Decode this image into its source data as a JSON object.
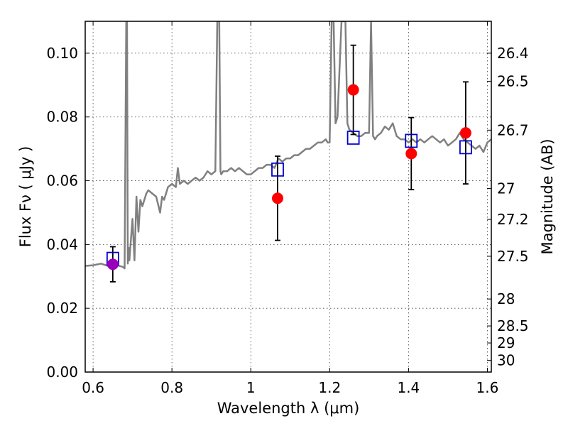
{
  "chart_data": {
    "type": "line",
    "title": "",
    "xlabel": "Wavelength  λ (μm)",
    "ylabel": "Flux  Fν  ( μJy )",
    "ylabel_right": "Magnitude (AB)",
    "xlim": [
      0.58,
      1.61
    ],
    "ylim": [
      0.0,
      0.11
    ],
    "grid": true,
    "colors": {
      "spectrum": "#808080",
      "observed": "#ff0000",
      "first_point": "#9900bb",
      "model": "#0000cc",
      "errorbar": "#000000"
    },
    "x_ticks": [
      {
        "value": 0.6,
        "label": "0.6"
      },
      {
        "value": 0.8,
        "label": "0.8"
      },
      {
        "value": 1.0,
        "label": "1"
      },
      {
        "value": 1.2,
        "label": "1.2"
      },
      {
        "value": 1.4,
        "label": "1.4"
      },
      {
        "value": 1.6,
        "label": "1.6"
      }
    ],
    "y_ticks": [
      {
        "value": 0.0,
        "label": "0.00"
      },
      {
        "value": 0.02,
        "label": "0.02"
      },
      {
        "value": 0.04,
        "label": "0.04"
      },
      {
        "value": 0.06,
        "label": "0.06"
      },
      {
        "value": 0.08,
        "label": "0.08"
      },
      {
        "value": 0.1,
        "label": "0.10"
      }
    ],
    "mag_ticks": [
      {
        "value": 26.4,
        "label": "26.4"
      },
      {
        "value": 26.5,
        "label": "26.5"
      },
      {
        "value": 26.7,
        "label": "26.7"
      },
      {
        "value": 27.0,
        "label": "27"
      },
      {
        "value": 27.2,
        "label": "27.2"
      },
      {
        "value": 27.5,
        "label": "27.5"
      },
      {
        "value": 28.0,
        "label": "28"
      },
      {
        "value": 28.5,
        "label": "28.5"
      },
      {
        "value": 29.0,
        "label": "29"
      },
      {
        "value": 30.0,
        "label": "30"
      }
    ],
    "spectrum": {
      "x": [
        0.58,
        0.6,
        0.62,
        0.64,
        0.66,
        0.675,
        0.68,
        0.684,
        0.686,
        0.688,
        0.69,
        0.692,
        0.7,
        0.705,
        0.71,
        0.715,
        0.72,
        0.725,
        0.73,
        0.735,
        0.74,
        0.75,
        0.76,
        0.77,
        0.775,
        0.78,
        0.79,
        0.8,
        0.81,
        0.815,
        0.82,
        0.83,
        0.84,
        0.85,
        0.86,
        0.87,
        0.88,
        0.89,
        0.9,
        0.91,
        0.915,
        0.92,
        0.923,
        0.925,
        0.93,
        0.94,
        0.95,
        0.96,
        0.97,
        0.98,
        0.99,
        1.0,
        1.01,
        1.02,
        1.03,
        1.04,
        1.05,
        1.06,
        1.07,
        1.08,
        1.09,
        1.1,
        1.11,
        1.12,
        1.13,
        1.14,
        1.15,
        1.16,
        1.17,
        1.18,
        1.19,
        1.195,
        1.2,
        1.205,
        1.21,
        1.215,
        1.22,
        1.23,
        1.235,
        1.24,
        1.245,
        1.25,
        1.26,
        1.27,
        1.28,
        1.29,
        1.3,
        1.305,
        1.31,
        1.315,
        1.32,
        1.33,
        1.34,
        1.35,
        1.36,
        1.37,
        1.38,
        1.39,
        1.4,
        1.41,
        1.42,
        1.43,
        1.44,
        1.45,
        1.46,
        1.47,
        1.48,
        1.49,
        1.5,
        1.51,
        1.52,
        1.53,
        1.54,
        1.55,
        1.56,
        1.57,
        1.58,
        1.59,
        1.6,
        1.61
      ],
      "y": [
        0.0333,
        0.0335,
        0.034,
        0.0332,
        0.0335,
        0.033,
        0.0325,
        0.11,
        0.11,
        0.034,
        0.039,
        0.035,
        0.048,
        0.035,
        0.055,
        0.044,
        0.054,
        0.052,
        0.054,
        0.056,
        0.057,
        0.056,
        0.055,
        0.05,
        0.055,
        0.054,
        0.058,
        0.059,
        0.058,
        0.064,
        0.059,
        0.06,
        0.059,
        0.06,
        0.061,
        0.06,
        0.061,
        0.063,
        0.062,
        0.063,
        0.11,
        0.11,
        0.063,
        0.062,
        0.063,
        0.063,
        0.064,
        0.063,
        0.064,
        0.063,
        0.062,
        0.062,
        0.063,
        0.064,
        0.064,
        0.065,
        0.065,
        0.064,
        0.067,
        0.066,
        0.067,
        0.067,
        0.068,
        0.068,
        0.069,
        0.07,
        0.07,
        0.071,
        0.072,
        0.072,
        0.073,
        0.072,
        0.072,
        0.11,
        0.11,
        0.078,
        0.08,
        0.11,
        0.11,
        0.11,
        0.078,
        0.076,
        0.075,
        0.074,
        0.074,
        0.075,
        0.075,
        0.11,
        0.074,
        0.073,
        0.074,
        0.075,
        0.077,
        0.076,
        0.078,
        0.074,
        0.073,
        0.073,
        0.072,
        0.073,
        0.072,
        0.073,
        0.072,
        0.073,
        0.074,
        0.073,
        0.072,
        0.073,
        0.071,
        0.072,
        0.073,
        0.075,
        0.073,
        0.072,
        0.071,
        0.07,
        0.071,
        0.069,
        0.072,
        0.073
      ]
    },
    "observed": [
      {
        "x": 0.65,
        "y": 0.0338,
        "err": 0.0055
      },
      {
        "x": 1.068,
        "y": 0.0545,
        "err": 0.0132
      },
      {
        "x": 1.26,
        "y": 0.0885,
        "err": 0.014
      },
      {
        "x": 1.407,
        "y": 0.0685,
        "err": 0.0113
      },
      {
        "x": 1.545,
        "y": 0.075,
        "err": 0.016
      }
    ],
    "model": [
      {
        "x": 0.65,
        "y": 0.0355
      },
      {
        "x": 1.068,
        "y": 0.0635
      },
      {
        "x": 1.26,
        "y": 0.0735
      },
      {
        "x": 1.407,
        "y": 0.0725
      },
      {
        "x": 1.545,
        "y": 0.0705
      }
    ]
  }
}
